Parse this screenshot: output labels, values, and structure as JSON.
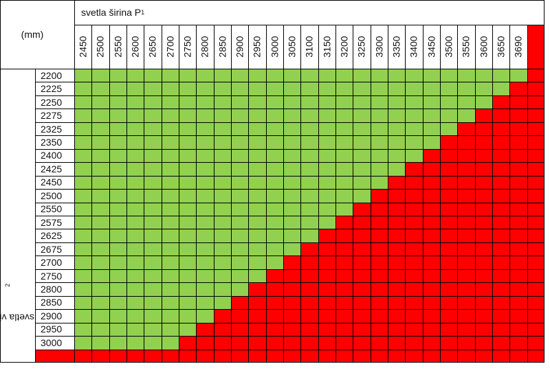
{
  "table": {
    "unit_label": "(mm)",
    "width_title": "svetla širina P",
    "width_title_sub": "1",
    "height_title": "svetla višina P",
    "height_title_sub": "2",
    "widths": [
      "2450",
      "2500",
      "2550",
      "2600",
      "2650",
      "2700",
      "2750",
      "2800",
      "2850",
      "2900",
      "2950",
      "3000",
      "3050",
      "3100",
      "3150",
      "3200",
      "3250",
      "3300",
      "3350",
      "3400",
      "3450",
      "3500",
      "3550",
      "3600",
      "3650",
      "3690"
    ],
    "heights": [
      "2200",
      "2225",
      "2250",
      "2275",
      "2325",
      "2350",
      "2400",
      "2425",
      "2450",
      "2500",
      "2550",
      "2575",
      "2625",
      "2675",
      "2700",
      "2750",
      "2800",
      "2850",
      "2900",
      "2950",
      "3000"
    ],
    "green_counts": [
      26,
      25,
      24,
      23,
      22,
      21,
      20,
      19,
      18,
      17,
      16,
      15,
      14,
      13,
      12,
      11,
      10,
      9,
      8,
      7,
      6
    ],
    "colors": {
      "allowed": "#92D050",
      "not_allowed": "#FF0000",
      "grid": "#000000",
      "header_bg": "#FFFFFF"
    }
  }
}
